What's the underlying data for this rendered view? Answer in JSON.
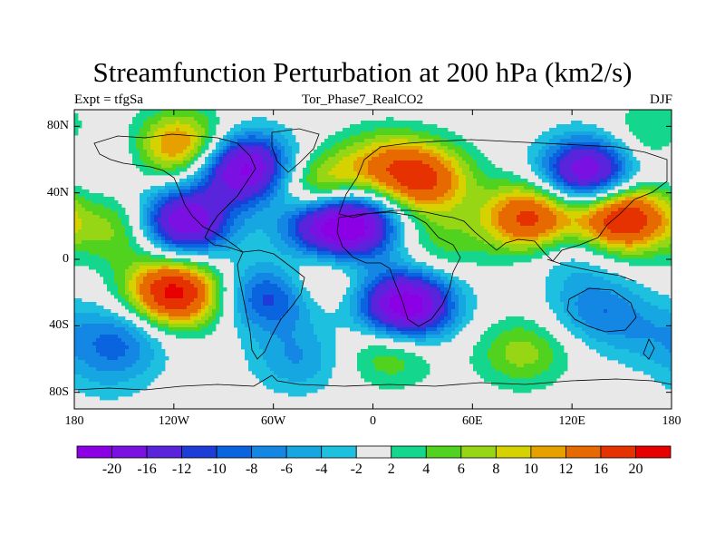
{
  "title": "Streamfunction Perturbation at 200 hPa (km2/s)",
  "subtitle_left": "Expt = tfgSa",
  "subtitle_center": "Tor_Phase7_RealCO2",
  "subtitle_right": "DJF",
  "lat_labels": [
    "80N",
    "40N",
    "0",
    "40S",
    "80S"
  ],
  "lat_values": [
    80,
    40,
    0,
    -40,
    -80
  ],
  "lon_labels": [
    "180",
    "120W",
    "60W",
    "0",
    "60E",
    "120E",
    "180"
  ],
  "lon_values": [
    -180,
    -120,
    -60,
    0,
    60,
    120,
    180
  ],
  "lat_range": [
    -90,
    90
  ],
  "lon_range": [
    -180,
    180
  ],
  "colorbar": {
    "labels": [
      "-20",
      "-16",
      "-12",
      "-10",
      "-8",
      "-6",
      "-4",
      "-2",
      "2",
      "4",
      "6",
      "8",
      "10",
      "12",
      "16",
      "20"
    ],
    "colors": [
      "#8c00e6",
      "#7a10e2",
      "#5a24dd",
      "#1e3cd8",
      "#0a64e0",
      "#1486e4",
      "#16a6e2",
      "#1ec0e0",
      "#e8e8e8",
      "#14d68c",
      "#50d21e",
      "#96d614",
      "#d6d200",
      "#e6a000",
      "#e66a00",
      "#e63200",
      "#e60000"
    ]
  },
  "field_levels": [
    -20,
    -16,
    -12,
    -10,
    -8,
    -6,
    -4,
    -2,
    2,
    4,
    6,
    8,
    10,
    12,
    16,
    20
  ],
  "field_centers": [
    {
      "lon": -150,
      "lat": 18,
      "amp": 8
    },
    {
      "lon": -115,
      "lat": 68,
      "amp": 14
    },
    {
      "lon": -78,
      "lat": 55,
      "amp": -22
    },
    {
      "lon": -115,
      "lat": 22,
      "amp": -21
    },
    {
      "lon": -150,
      "lat": -45,
      "amp": -7
    },
    {
      "lon": -120,
      "lat": -20,
      "amp": 22
    },
    {
      "lon": -62,
      "lat": -22,
      "amp": -12
    },
    {
      "lon": -35,
      "lat": -10,
      "amp": 6
    },
    {
      "lon": -30,
      "lat": 40,
      "amp": 14
    },
    {
      "lon": -10,
      "lat": 22,
      "amp": -18
    },
    {
      "lon": -30,
      "lat": 22,
      "amp": -16
    },
    {
      "lon": 30,
      "lat": 48,
      "amp": 16
    },
    {
      "lon": 5,
      "lat": 58,
      "amp": 8
    },
    {
      "lon": 20,
      "lat": -28,
      "amp": -24
    },
    {
      "lon": 40,
      "lat": 10,
      "amp": 5
    },
    {
      "lon": 90,
      "lat": -56,
      "amp": 7
    },
    {
      "lon": 10,
      "lat": -55,
      "amp": 7
    },
    {
      "lon": -45,
      "lat": -60,
      "amp": -6
    },
    {
      "lon": 130,
      "lat": 52,
      "amp": -21
    },
    {
      "lon": 150,
      "lat": 25,
      "amp": 22
    },
    {
      "lon": 95,
      "lat": 25,
      "amp": 18
    },
    {
      "lon": 135,
      "lat": -30,
      "amp": -7
    },
    {
      "lon": 120,
      "lat": 5,
      "amp": -5
    },
    {
      "lon": 170,
      "lat": 72,
      "amp": 7
    },
    {
      "lon": -170,
      "lat": 65,
      "amp": -5
    },
    {
      "lon": 165,
      "lat": -45,
      "amp": -4
    },
    {
      "lon": -160,
      "lat": -65,
      "amp": -4
    }
  ],
  "coastline_notes": "Simplified continental outlines drawn on a cylindrical equidistant map"
}
